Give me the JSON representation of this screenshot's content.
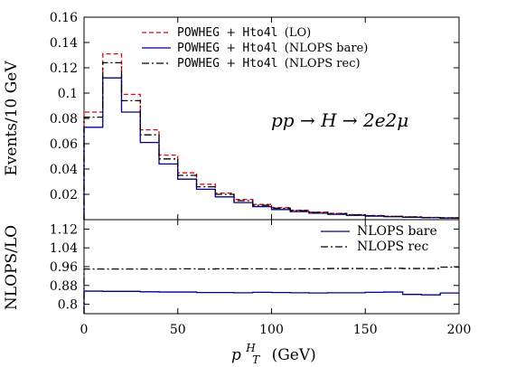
{
  "chart_data": [
    {
      "type": "line",
      "step": true,
      "bin_width": 10,
      "xlim": [
        0,
        200
      ],
      "ylim": [
        0,
        0.16
      ],
      "ylabel": "Events/10 GeV",
      "annotation": "pp → H → 2e2μ",
      "yticks": [
        "0.16",
        "0.14",
        "0.12",
        "0.1",
        "0.08",
        "0.06",
        "0.04",
        "0.02"
      ],
      "grid": false,
      "legend_position": "top-right",
      "series": [
        {
          "name": "POWHEG + Hto4l (LO)",
          "name_mono1": "POWHEG",
          "name_plus": "+",
          "name_mono2": "Hto4l",
          "name_suffix": "(LO)",
          "color": "#e8000b",
          "dash": "5,3",
          "x": [
            0,
            10,
            20,
            30,
            40,
            50,
            60,
            70,
            80,
            90,
            100,
            110,
            120,
            130,
            140,
            150,
            160,
            170,
            180,
            190
          ],
          "values": [
            0.085,
            0.131,
            0.099,
            0.071,
            0.051,
            0.037,
            0.028,
            0.021,
            0.016,
            0.012,
            0.0095,
            0.0075,
            0.006,
            0.005,
            0.004,
            0.0033,
            0.0027,
            0.0022,
            0.0018,
            0.0015
          ]
        },
        {
          "name": "POWHEG + Hto4l (NLOPS bare)",
          "name_mono1": "POWHEG",
          "name_plus": "+",
          "name_mono2": "Hto4l",
          "name_suffix": "(NLOPS bare)",
          "color": "#00008b",
          "dash": "",
          "x": [
            0,
            10,
            20,
            30,
            40,
            50,
            60,
            70,
            80,
            90,
            100,
            110,
            120,
            130,
            140,
            150,
            160,
            170,
            180,
            190
          ],
          "values": [
            0.073,
            0.112,
            0.085,
            0.061,
            0.044,
            0.032,
            0.024,
            0.018,
            0.0135,
            0.0103,
            0.008,
            0.0064,
            0.0051,
            0.0042,
            0.0034,
            0.0028,
            0.0023,
            0.0019,
            0.0016,
            0.0013
          ]
        },
        {
          "name": "POWHEG + Hto4l (NLOPS rec)",
          "name_mono1": "POWHEG",
          "name_plus": "+",
          "name_mono2": "Hto4l",
          "name_suffix": "(NLOPS rec)",
          "color": "#000000",
          "dash": "8,3,2,3",
          "x": [
            0,
            10,
            20,
            30,
            40,
            50,
            60,
            70,
            80,
            90,
            100,
            110,
            120,
            130,
            140,
            150,
            160,
            170,
            180,
            190
          ],
          "values": [
            0.081,
            0.124,
            0.094,
            0.067,
            0.048,
            0.035,
            0.026,
            0.02,
            0.015,
            0.0114,
            0.009,
            0.0071,
            0.0057,
            0.0047,
            0.0038,
            0.0031,
            0.0026,
            0.0021,
            0.0017,
            0.0014
          ]
        }
      ]
    },
    {
      "type": "line",
      "step": true,
      "bin_width": 10,
      "xlim": [
        0,
        200
      ],
      "ylim": [
        0.76,
        1.16
      ],
      "xlabel_main": "p",
      "xlabel_sup": "H",
      "xlabel_sub": "T",
      "xlabel_unit": "(GeV)",
      "ylabel": "NLOPS/LO",
      "xticks": [
        "0",
        "50",
        "100",
        "150",
        "200"
      ],
      "yticks": [
        "1.12",
        "1.04",
        "0.96",
        "0.88",
        "0.8"
      ],
      "grid": false,
      "legend_position": "top-right",
      "series": [
        {
          "name": "NLOPS bare",
          "color": "#00008b",
          "dash": "",
          "x": [
            0,
            10,
            20,
            30,
            40,
            50,
            60,
            70,
            80,
            90,
            100,
            110,
            120,
            130,
            140,
            150,
            160,
            170,
            180,
            190
          ],
          "values": [
            0.856,
            0.855,
            0.855,
            0.853,
            0.852,
            0.852,
            0.85,
            0.85,
            0.849,
            0.851,
            0.85,
            0.849,
            0.848,
            0.849,
            0.849,
            0.851,
            0.852,
            0.842,
            0.84,
            0.848
          ]
        },
        {
          "name": "NLOPS rec",
          "color": "#000000",
          "dash": "8,3,2,3",
          "x": [
            0,
            10,
            20,
            30,
            40,
            50,
            60,
            70,
            80,
            90,
            100,
            110,
            120,
            130,
            140,
            150,
            160,
            170,
            180,
            190
          ],
          "values": [
            0.95,
            0.95,
            0.95,
            0.95,
            0.95,
            0.951,
            0.95,
            0.951,
            0.951,
            0.951,
            0.95,
            0.951,
            0.951,
            0.952,
            0.952,
            0.951,
            0.953,
            0.952,
            0.952,
            0.958
          ]
        }
      ]
    }
  ]
}
